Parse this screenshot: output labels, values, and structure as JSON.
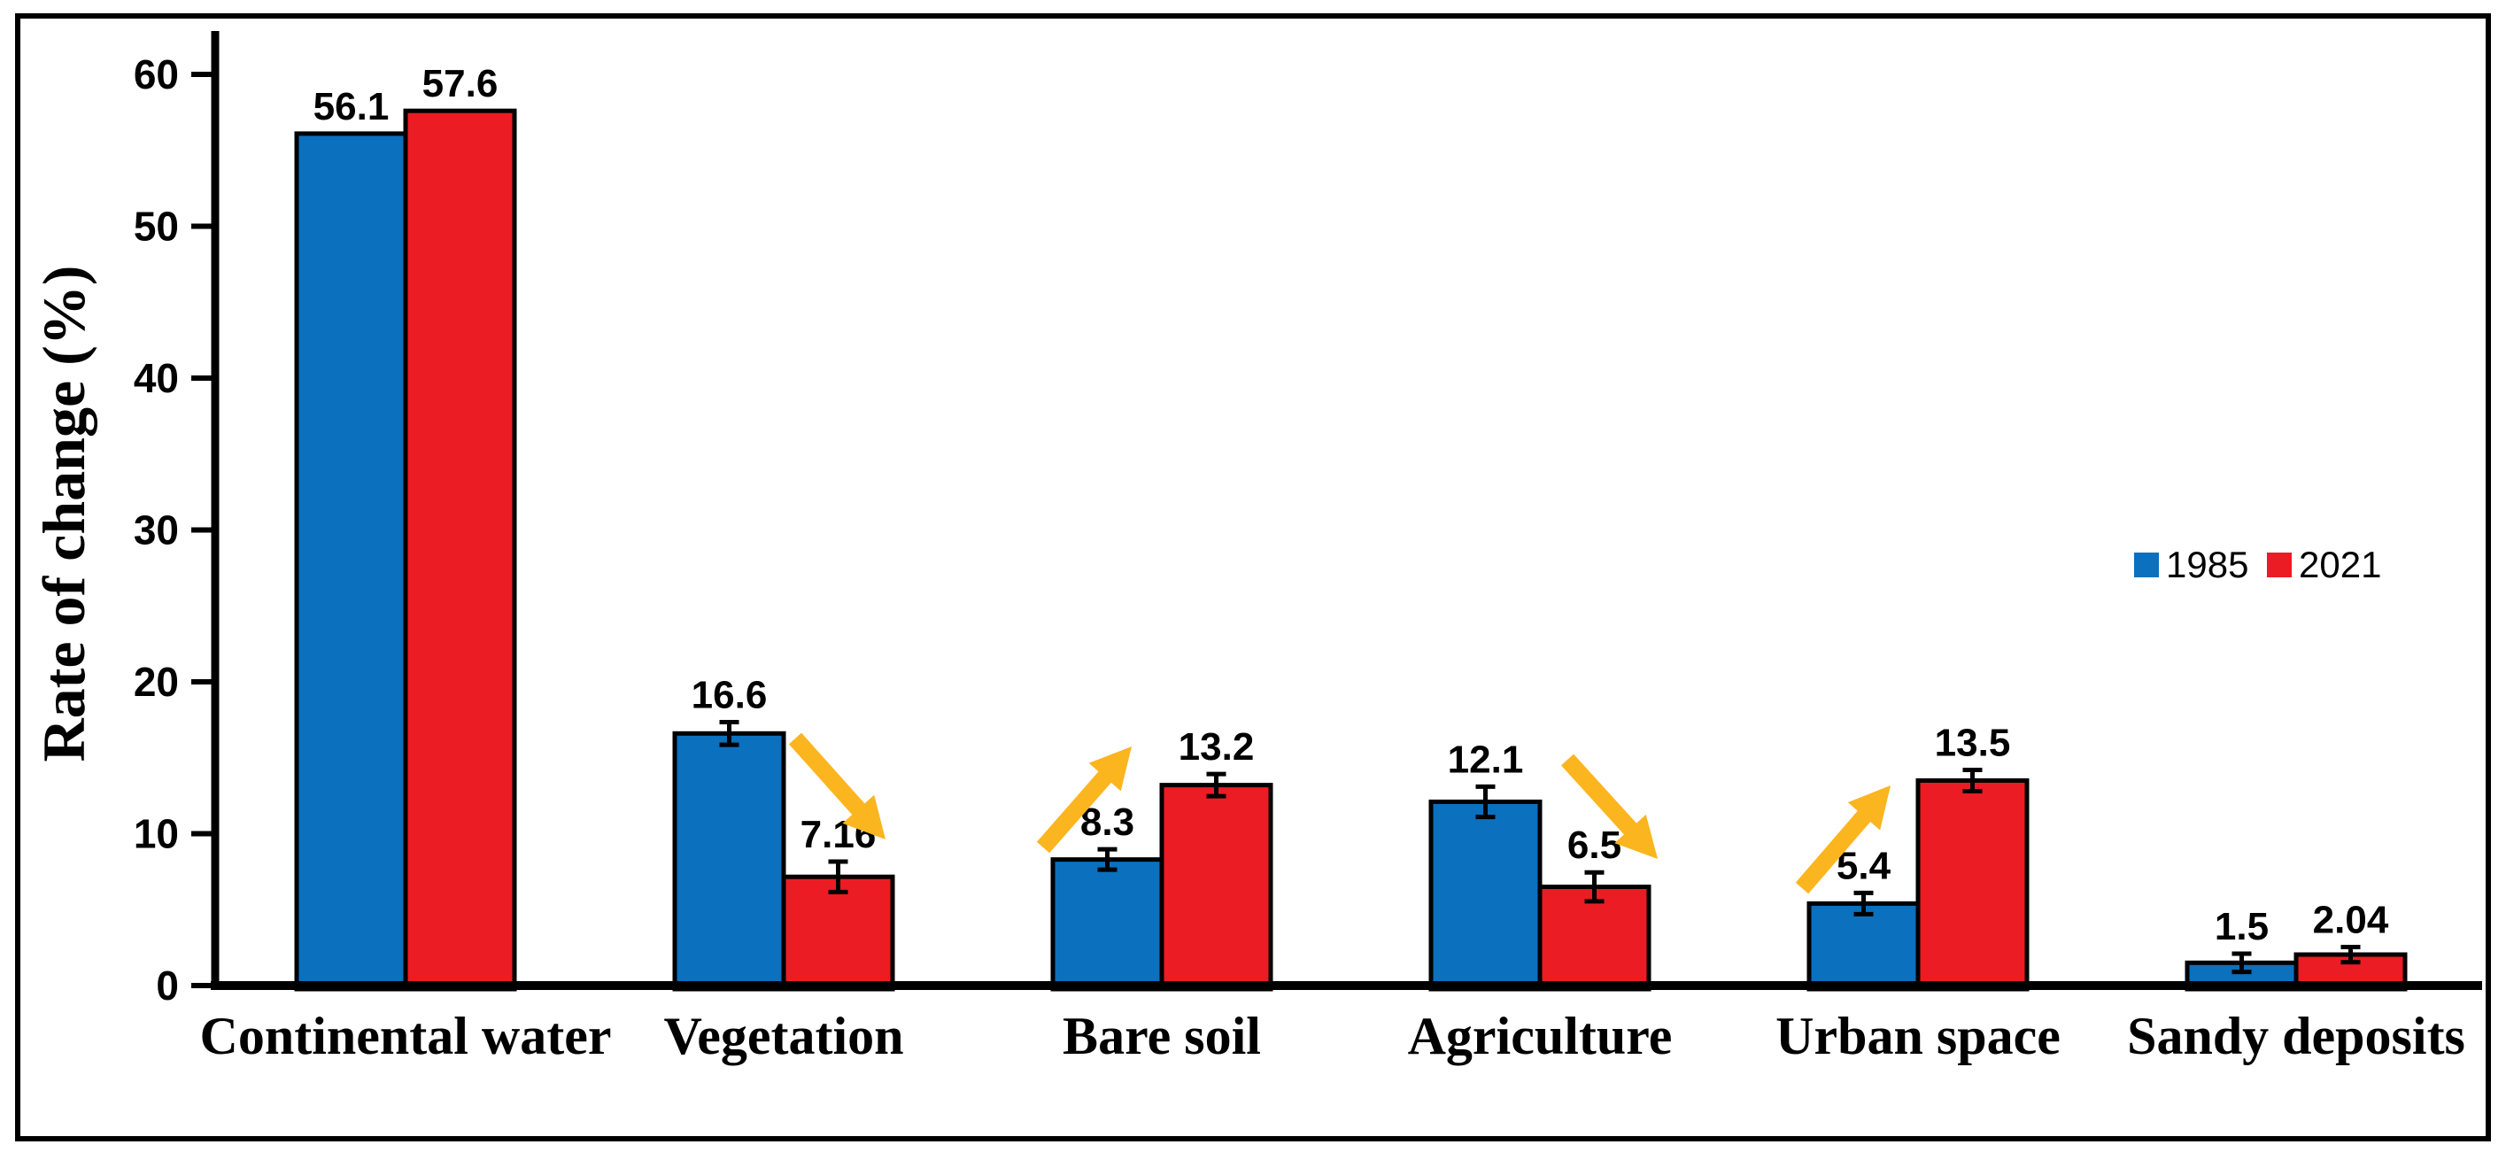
{
  "figure": {
    "background_color": "#ffffff",
    "frame_color": "#000000",
    "axis_color": "#000000",
    "error_bar_color": "#000000"
  },
  "legend": {
    "items": [
      {
        "label": "1985",
        "color": "#0b70be"
      },
      {
        "label": "2021",
        "color": "#ec1c24"
      }
    ]
  },
  "chart_data": {
    "type": "bar",
    "title": "",
    "xlabel": "",
    "ylabel": "Rate of change (%)",
    "ylim": [
      0,
      60
    ],
    "yticks": [
      0,
      10,
      20,
      30,
      40,
      50,
      60
    ],
    "grid": false,
    "legend_position": "center-right",
    "categories": [
      "Continental water",
      "Vegetation",
      "Bare soil",
      "Agriculture",
      "Urban space",
      "Sandy deposits"
    ],
    "series": [
      {
        "name": "1985",
        "color": "#0b70be",
        "values": [
          56.1,
          16.6,
          8.3,
          12.1,
          5.4,
          1.5
        ],
        "errors": [
          0,
          0.75,
          0.67,
          1.0,
          0.7,
          0.6
        ]
      },
      {
        "name": "2021",
        "color": "#ec1c24",
        "values": [
          57.6,
          7.16,
          13.2,
          6.5,
          13.5,
          2.04
        ],
        "errors": [
          0,
          1.0,
          0.73,
          0.95,
          0.7,
          0.5
        ]
      }
    ],
    "trend_arrows": [
      {
        "category": "Vegetation",
        "direction": "down",
        "color": "#fbb51e",
        "from": [
          898,
          834
        ],
        "to": [
          1000,
          948
        ]
      },
      {
        "category": "Bare soil",
        "direction": "up",
        "color": "#fbb51e",
        "from": [
          1178,
          957
        ],
        "to": [
          1278,
          843
        ]
      },
      {
        "category": "Agriculture",
        "direction": "down",
        "color": "#fbb51e",
        "from": [
          1770,
          858
        ],
        "to": [
          1872,
          970
        ]
      },
      {
        "category": "Urban space",
        "direction": "up",
        "color": "#fbb51e",
        "from": [
          2035,
          1003
        ],
        "to": [
          2135,
          887
        ]
      }
    ]
  }
}
